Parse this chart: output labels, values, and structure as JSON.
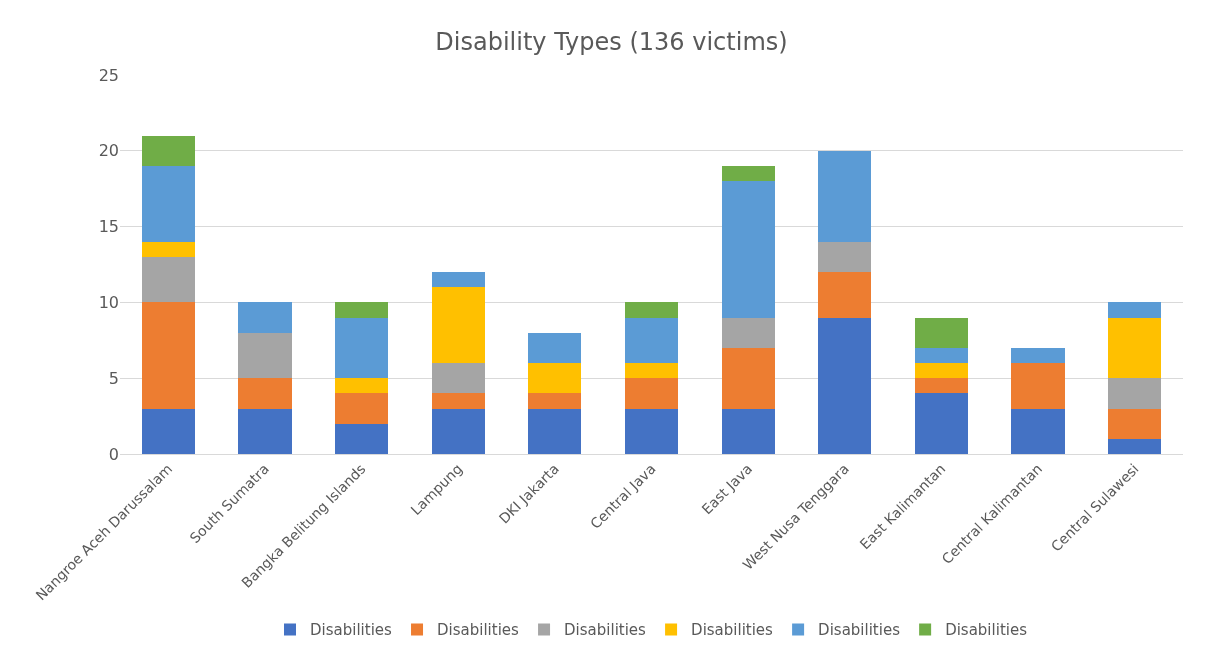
{
  "chart_data": {
    "type": "bar",
    "title": "Disability Types (136 victims)",
    "stacked": true,
    "categories": [
      "Nangroe Aceh Darussalam",
      "South Sumatra",
      "Bangka Belitung Islands",
      "Lampung",
      "DKI Jakarta",
      "Central Java",
      "East Java",
      "West Nusa Tenggara",
      "East Kalimantan",
      "Central Kalimantan",
      "Central Sulawesi"
    ],
    "series": [
      {
        "name": "Disabilities",
        "color": "#4472c4",
        "values": [
          3,
          3,
          2,
          3,
          3,
          3,
          3,
          9,
          4,
          3,
          1
        ]
      },
      {
        "name": "Disabilities",
        "color": "#ed7d31",
        "values": [
          7,
          2,
          2,
          1,
          1,
          2,
          4,
          3,
          1,
          3,
          2
        ]
      },
      {
        "name": "Disabilities",
        "color": "#a5a5a5",
        "values": [
          3,
          3,
          0,
          2,
          0,
          0,
          2,
          2,
          0,
          0,
          2
        ]
      },
      {
        "name": "Disabilities",
        "color": "#ffc000",
        "values": [
          1,
          0,
          1,
          5,
          2,
          1,
          0,
          0,
          1,
          0,
          4
        ]
      },
      {
        "name": "Disabilities",
        "color": "#5b9bd5",
        "values": [
          5,
          2,
          4,
          1,
          2,
          3,
          9,
          6,
          1,
          1,
          1
        ]
      },
      {
        "name": "Disabilities",
        "color": "#70ad47",
        "values": [
          2,
          0,
          1,
          0,
          0,
          1,
          1,
          0,
          2,
          0,
          0
        ]
      }
    ],
    "ylim": [
      0,
      25
    ],
    "yticks": [
      0,
      5,
      10,
      15,
      20,
      25
    ],
    "grid": "y",
    "legend": "bottom"
  }
}
